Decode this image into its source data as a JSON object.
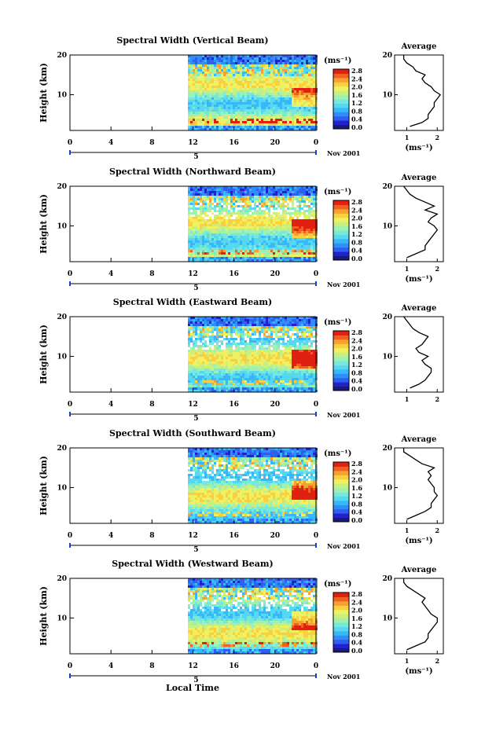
{
  "chart_data": [
    {
      "type": "heatmap",
      "title": "Spectral Width (Vertical Beam)",
      "ylabel": "Height (km)",
      "yticks": [
        "20",
        "10"
      ],
      "ylim": [
        1,
        20
      ],
      "xticks": [
        "0",
        "4",
        "8",
        "12",
        "16",
        "20",
        "0"
      ],
      "xlim": [
        0,
        24
      ],
      "data_start_hour": 11.5,
      "day_label": "5",
      "date_label": "Nov 2001",
      "colorbar": {
        "unit": "(ms⁻¹)",
        "ticks": [
          "2.8",
          "2.4",
          "2.0",
          "1.6",
          "1.2",
          "0.8",
          "0.4",
          "0.0"
        ],
        "range": [
          0.0,
          2.8
        ]
      },
      "average": {
        "title": "Average",
        "xlabel": "(ms⁻¹)",
        "xticks": [
          "1",
          "2"
        ],
        "xlim": [
          0.6,
          2.2
        ],
        "heights": [
          2,
          3,
          4,
          5,
          6,
          7,
          8,
          9,
          10,
          11,
          12,
          13,
          14,
          15,
          16,
          17,
          18,
          19,
          20
        ],
        "values": [
          1.1,
          1.5,
          1.7,
          1.7,
          1.8,
          1.9,
          1.9,
          2.0,
          2.1,
          1.9,
          1.8,
          1.6,
          1.5,
          1.6,
          1.3,
          1.2,
          1.0,
          0.9,
          0.9
        ]
      }
    },
    {
      "type": "heatmap",
      "title": "Spectral Width (Northward Beam)",
      "ylabel": "Height (km)",
      "yticks": [
        "20",
        "10"
      ],
      "ylim": [
        1,
        20
      ],
      "xticks": [
        "0",
        "4",
        "8",
        "12",
        "16",
        "20",
        "0"
      ],
      "xlim": [
        0,
        24
      ],
      "data_start_hour": 11.5,
      "day_label": "5",
      "date_label": "Nov 2001",
      "colorbar": {
        "unit": "(ms⁻¹)",
        "ticks": [
          "2.8",
          "2.4",
          "2.0",
          "1.6",
          "1.2",
          "0.8",
          "0.4",
          "0.0"
        ],
        "range": [
          0.0,
          2.8
        ]
      },
      "average": {
        "title": "Average",
        "xlabel": "(ms⁻¹)",
        "xticks": [
          "1",
          "2"
        ],
        "xlim": [
          0.6,
          2.2
        ],
        "heights": [
          2,
          3,
          4,
          5,
          6,
          7,
          8,
          9,
          10,
          11,
          12,
          13,
          14,
          15,
          16,
          17,
          18,
          19,
          20
        ],
        "values": [
          1.0,
          1.3,
          1.6,
          1.6,
          1.7,
          1.8,
          1.9,
          2.0,
          1.9,
          1.7,
          1.8,
          2.0,
          1.6,
          1.9,
          1.6,
          1.3,
          1.1,
          1.0,
          0.9
        ]
      }
    },
    {
      "type": "heatmap",
      "title": "Spectral Width (Eastward Beam)",
      "ylabel": "Height (km)",
      "yticks": [
        "20",
        "10"
      ],
      "ylim": [
        1,
        20
      ],
      "xticks": [
        "0",
        "4",
        "8",
        "12",
        "16",
        "20",
        "0"
      ],
      "xlim": [
        0,
        24
      ],
      "data_start_hour": 11.5,
      "day_label": "5",
      "date_label": "Nov 2001",
      "colorbar": {
        "unit": "(ms⁻¹)",
        "ticks": [
          "2.8",
          "2.4",
          "2.0",
          "1.6",
          "1.2",
          "0.8",
          "0.4",
          "0.0"
        ],
        "range": [
          0.0,
          2.8
        ]
      },
      "average": {
        "title": "Average",
        "xlabel": "",
        "xticks": [
          "1",
          "2"
        ],
        "xlim": [
          0.6,
          2.2
        ],
        "heights": [
          2,
          3,
          4,
          5,
          6,
          7,
          8,
          9,
          10,
          11,
          12,
          13,
          14,
          15,
          16,
          17,
          18,
          19,
          20
        ],
        "values": [
          1.1,
          1.4,
          1.6,
          1.7,
          1.8,
          1.8,
          1.6,
          1.5,
          1.7,
          1.4,
          1.3,
          1.5,
          1.6,
          1.7,
          1.4,
          1.2,
          1.1,
          1.0,
          0.9
        ]
      }
    },
    {
      "type": "heatmap",
      "title": "Spectral Width (Southward Beam)",
      "ylabel": "Height (km)",
      "yticks": [
        "20",
        "10"
      ],
      "ylim": [
        1,
        20
      ],
      "xticks": [
        "0",
        "4",
        "8",
        "12",
        "16",
        "20",
        "0"
      ],
      "xlim": [
        0,
        24
      ],
      "data_start_hour": 11.5,
      "day_label": "5",
      "date_label": "Nov 2001",
      "colorbar": {
        "unit": "(ms⁻¹)",
        "ticks": [
          "2.8",
          "2.4",
          "2.0",
          "1.6",
          "1.2",
          "0.8",
          "0.4",
          "0.0"
        ],
        "range": [
          0.0,
          2.8
        ]
      },
      "average": {
        "title": "Average",
        "xlabel": "(ms⁻¹)",
        "xticks": [
          "1",
          "2"
        ],
        "xlim": [
          0.6,
          2.2
        ],
        "heights": [
          2,
          3,
          4,
          5,
          6,
          7,
          8,
          9,
          10,
          11,
          12,
          13,
          14,
          15,
          16,
          17,
          18,
          19,
          20
        ],
        "values": [
          1.0,
          1.3,
          1.6,
          1.8,
          1.8,
          1.9,
          2.0,
          1.9,
          1.9,
          1.8,
          1.7,
          1.8,
          1.7,
          1.9,
          1.5,
          1.3,
          1.1,
          0.9,
          0.9
        ]
      }
    },
    {
      "type": "heatmap",
      "title": "Spectral Width (Westward Beam)",
      "ylabel": "Height (km)",
      "yticks": [
        "20",
        "10"
      ],
      "ylim": [
        1,
        20
      ],
      "xticks": [
        "0",
        "4",
        "8",
        "12",
        "16",
        "20",
        "0"
      ],
      "xlim": [
        0,
        24
      ],
      "data_start_hour": 11.5,
      "day_label": "5",
      "date_label": "Nov 2001",
      "colorbar": {
        "unit": "(ms⁻¹)",
        "ticks": [
          "2.8",
          "2.4",
          "2.0",
          "1.6",
          "1.2",
          "0.8",
          "0.4",
          "0.0"
        ],
        "range": [
          0.0,
          2.8
        ]
      },
      "average": {
        "title": "Average",
        "xlabel": "(ms⁻¹)",
        "xticks": [
          "1",
          "2"
        ],
        "xlim": [
          0.6,
          2.2
        ],
        "heights": [
          2,
          3,
          4,
          5,
          6,
          7,
          8,
          9,
          10,
          11,
          12,
          13,
          14,
          15,
          16,
          17,
          18,
          19,
          20
        ],
        "values": [
          1.0,
          1.3,
          1.6,
          1.7,
          1.7,
          1.8,
          1.9,
          2.0,
          2.0,
          1.8,
          1.7,
          1.6,
          1.5,
          1.6,
          1.4,
          1.2,
          1.0,
          0.9,
          0.9
        ]
      }
    }
  ],
  "x_axis_label": "Local Time"
}
